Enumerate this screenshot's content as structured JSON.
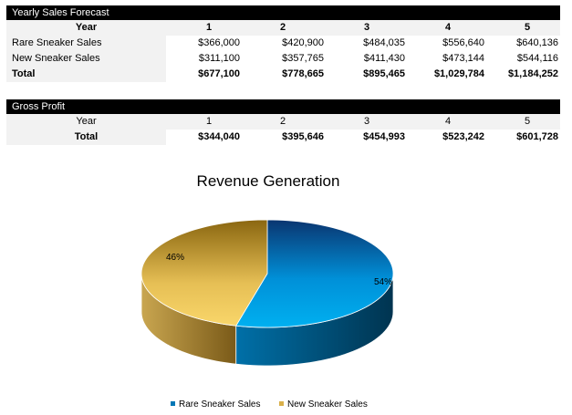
{
  "sales": {
    "title": "Yearly Sales Forecast",
    "year_label": "Year",
    "years": [
      "1",
      "2",
      "3",
      "4",
      "5"
    ],
    "rows": [
      {
        "label": "Rare Sneaker Sales",
        "values": [
          "$366,000",
          "$420,900",
          "$484,035",
          "$556,640",
          "$640,136"
        ]
      },
      {
        "label": "New Sneaker Sales",
        "values": [
          "$311,100",
          "$357,765",
          "$411,430",
          "$473,144",
          "$544,116"
        ]
      }
    ],
    "total": {
      "label": "Total",
      "values": [
        "$677,100",
        "$778,665",
        "$895,465",
        "$1,029,784",
        "$1,184,252"
      ]
    }
  },
  "profit": {
    "title": "Gross Profit",
    "year_label": "Year",
    "years": [
      "1",
      "2",
      "3",
      "4",
      "5"
    ],
    "total": {
      "label": "Total",
      "values": [
        "$344,040",
        "$395,646",
        "$454,993",
        "$523,242",
        "$601,728"
      ]
    }
  },
  "chart_data": {
    "type": "pie",
    "title": "Revenue Generation",
    "style": "3d",
    "categories": [
      "Rare Sneaker Sales",
      "New Sneaker Sales"
    ],
    "values": [
      54,
      46
    ],
    "labels": [
      "54%",
      "46%"
    ],
    "colors": [
      "#00a9e6",
      "#f5cf63"
    ],
    "legend": "bottom"
  }
}
